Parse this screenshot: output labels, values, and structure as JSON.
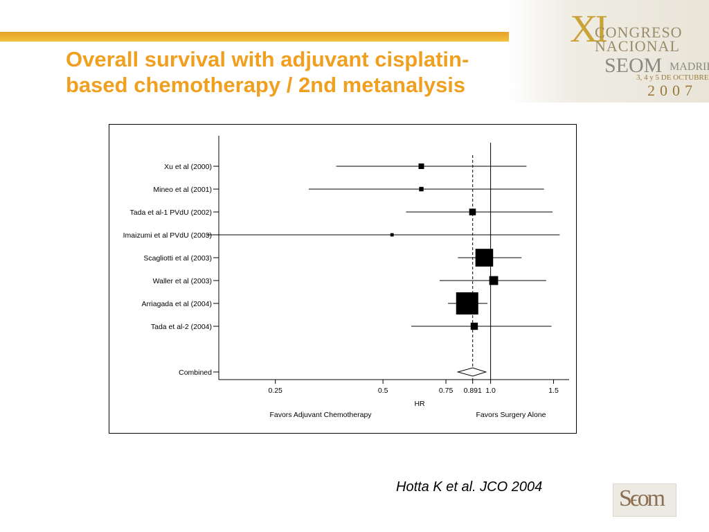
{
  "slide": {
    "title": "Overall survival with adjuvant cisplatin-based chemotherapy / 2nd metanalysis",
    "citation": "Hotta K et al. JCO 2004"
  },
  "branding": {
    "congress_number": "XI",
    "congress_line1": "CONGRESO",
    "congress_line2": "NACIONAL",
    "society": "SEOM",
    "city": "MADRID",
    "dates": "3, 4 y 5 DE OCTUBRE",
    "year": "2007",
    "logo_text": "Seom",
    "accent_color": "#f0a020",
    "rule_color": "#eeb030"
  },
  "chart_data": {
    "type": "forest",
    "xlabel": "HR",
    "favors_left": "Favors Adjuvant Chemotherapy",
    "favors_right": "Favors Surgery Alone",
    "x_ticks": [
      {
        "value": 0.25,
        "label": "0.25"
      },
      {
        "value": 0.5,
        "label": "0.5"
      },
      {
        "value": 0.75,
        "label": "0.75"
      },
      {
        "value": 0.891,
        "label": "0.891"
      },
      {
        "value": 1.0,
        "label": "1.0"
      },
      {
        "value": 1.5,
        "label": "1.5"
      }
    ],
    "null_line": 1.0,
    "combined_line": 0.891,
    "studies": [
      {
        "label": "Xu et al (2000)",
        "hr": 0.64,
        "lo": 0.37,
        "hi": 1.26,
        "weight": 1
      },
      {
        "label": "Mineo et al (2001)",
        "hr": 0.64,
        "lo": 0.31,
        "hi": 1.41,
        "weight": 0.8
      },
      {
        "label": "Tada et al-1 PVdU (2002)",
        "hr": 0.89,
        "lo": 0.58,
        "hi": 1.49,
        "weight": 1.2
      },
      {
        "label": "Imaizumi et al PVdU (2003)",
        "hr": 0.53,
        "lo": 0.16,
        "hi": 1.56,
        "weight": 0.6
      },
      {
        "label": "Scagliotti et al (2003)",
        "hr": 0.96,
        "lo": 0.81,
        "hi": 1.22,
        "weight": 3.2
      },
      {
        "label": "Waller et al (2003)",
        "hr": 1.02,
        "lo": 0.72,
        "hi": 1.43,
        "weight": 1.6
      },
      {
        "label": "Arriagada et al (2004)",
        "hr": 0.86,
        "lo": 0.76,
        "hi": 0.98,
        "weight": 4.0
      },
      {
        "label": "Tada et al-2 (2004)",
        "hr": 0.9,
        "lo": 0.6,
        "hi": 1.48,
        "weight": 1.3
      }
    ],
    "combined": {
      "label": "Combined",
      "hr": 0.891,
      "lo": 0.81,
      "hi": 0.97
    }
  }
}
